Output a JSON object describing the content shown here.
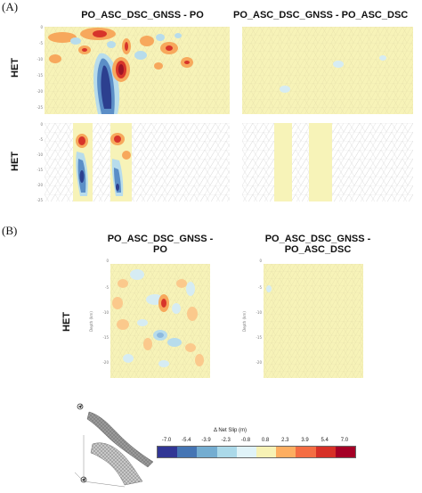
{
  "section_a": {
    "label": "(A)",
    "titles": [
      "PO_ASC_DSC_GNSS - PO",
      "PO_ASC_DSC_GNSS - PO_ASC_DSC"
    ],
    "rows": [
      "HET",
      "HET"
    ]
  },
  "section_b": {
    "label": "(B)",
    "titles": [
      {
        "line1": "PO_ASC_DSC_GNSS -",
        "line2": "PO"
      },
      {
        "line1": "PO_ASC_DSC_GNSS -",
        "line2": "PO_ASC_DSC"
      }
    ],
    "row": "HET"
  },
  "axis": {
    "ticks": [
      "0",
      "-5",
      "-10",
      "-15",
      "-20",
      "-25"
    ],
    "label": "Depth (km)"
  },
  "legend": {
    "title": "Δ Net Slip (m)",
    "ticks": [
      "-7.0",
      "-5.4",
      "-3.9",
      "-2.3",
      "-0.8",
      "0.8",
      "2.3",
      "3.9",
      "5.4",
      "7.0"
    ],
    "colors": [
      "#313695",
      "#4575b4",
      "#74add1",
      "#abd9e9",
      "#e0f3f8",
      "#f7f2b5",
      "#fdae61",
      "#f46d43",
      "#d73027",
      "#a50026"
    ]
  },
  "colors": {
    "neutral": "#f7f3b8",
    "mesh": "#d9d4a0",
    "dark_blue": "#2c3f8f",
    "blue": "#5b8ec7",
    "light_blue": "#b7dcec",
    "orange": "#f7a85c",
    "red": "#d7342a",
    "dark_red": "#9d1426"
  }
}
